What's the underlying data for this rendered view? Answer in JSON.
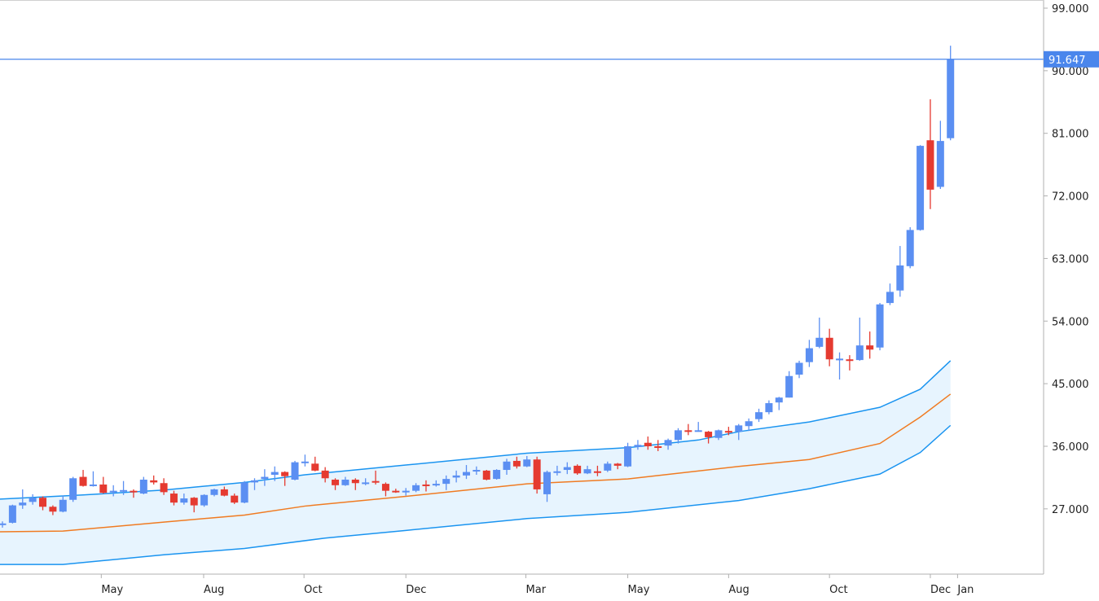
{
  "chart_data": {
    "type": "candlestick",
    "title": "",
    "xlabel": "",
    "ylabel": "",
    "ylim": [
      17600,
      100170
    ],
    "y_ticks": [
      "99.000",
      "90.000",
      "81.000",
      "72.000",
      "63.000",
      "54.000",
      "45.000",
      "36.000",
      "27.000"
    ],
    "y_tick_values": [
      99000,
      90000,
      81000,
      72000,
      63000,
      54000,
      45000,
      36000,
      27000
    ],
    "x_ticks": [
      {
        "label": "May",
        "index": 9.8
      },
      {
        "label": "Aug",
        "index": 19.95
      },
      {
        "label": "Oct",
        "index": 29.9
      },
      {
        "label": "Dec",
        "index": 40
      },
      {
        "label": "Mar",
        "index": 51.9
      },
      {
        "label": "May",
        "index": 62
      },
      {
        "label": "Aug",
        "index": 72
      },
      {
        "label": "Oct",
        "index": 82
      },
      {
        "label": "Dec",
        "index": 92
      },
      {
        "label": "Jan",
        "index": 94.7
      }
    ],
    "current_price": 91647,
    "current_price_label": "91.647",
    "ohlc_units": "thousands",
    "ohlc": [
      [
        24.7,
        25.2,
        24.3,
        24.9
      ],
      [
        25.0,
        27.6,
        24.9,
        27.5
      ],
      [
        27.5,
        29.8,
        27.0,
        27.9
      ],
      [
        28.0,
        29.1,
        27.6,
        28.6
      ],
      [
        28.6,
        28.8,
        26.8,
        27.3
      ],
      [
        27.3,
        27.5,
        26.1,
        26.6
      ],
      [
        26.6,
        28.9,
        26.5,
        28.3
      ],
      [
        28.3,
        31.6,
        28.0,
        31.4
      ],
      [
        31.6,
        32.6,
        30.2,
        30.3
      ],
      [
        30.4,
        32.4,
        30.2,
        30.5
      ],
      [
        30.5,
        31.6,
        29.2,
        29.3
      ],
      [
        29.4,
        30.4,
        28.8,
        29.6
      ],
      [
        29.6,
        31.0,
        29.0,
        29.7
      ],
      [
        29.6,
        29.8,
        28.6,
        29.4
      ],
      [
        29.2,
        31.6,
        29.1,
        31.2
      ],
      [
        31.1,
        31.8,
        30.5,
        30.8
      ],
      [
        30.7,
        31.4,
        29.0,
        29.4
      ],
      [
        29.2,
        29.6,
        27.5,
        27.9
      ],
      [
        27.9,
        29.2,
        27.6,
        28.5
      ],
      [
        28.6,
        28.7,
        26.5,
        27.5
      ],
      [
        27.5,
        29.1,
        27.3,
        29.0
      ],
      [
        29.0,
        29.9,
        28.8,
        29.8
      ],
      [
        29.8,
        30.2,
        28.8,
        28.9
      ],
      [
        28.9,
        29.2,
        27.7,
        27.9
      ],
      [
        27.9,
        31.0,
        27.8,
        30.8
      ],
      [
        30.8,
        31.4,
        29.7,
        31.1
      ],
      [
        31.3,
        32.7,
        30.3,
        31.6
      ],
      [
        31.9,
        33.1,
        31.0,
        32.3
      ],
      [
        32.3,
        32.4,
        30.3,
        31.7
      ],
      [
        31.2,
        33.9,
        31.1,
        33.7
      ],
      [
        33.7,
        34.8,
        33.1,
        33.8
      ],
      [
        33.5,
        34.5,
        32.4,
        32.5
      ],
      [
        32.5,
        33.0,
        30.8,
        31.4
      ],
      [
        31.2,
        31.4,
        29.7,
        30.4
      ],
      [
        30.4,
        31.6,
        30.3,
        31.2
      ],
      [
        31.2,
        31.4,
        29.7,
        30.7
      ],
      [
        30.7,
        31.4,
        30.4,
        30.8
      ],
      [
        31.0,
        32.5,
        30.5,
        30.8
      ],
      [
        30.6,
        30.8,
        28.8,
        29.6
      ],
      [
        29.6,
        29.9,
        29.3,
        29.5
      ],
      [
        29.5,
        30.0,
        28.9,
        29.6
      ],
      [
        29.6,
        30.7,
        29.4,
        30.4
      ],
      [
        30.5,
        31.1,
        29.5,
        30.4
      ],
      [
        30.4,
        31.1,
        30.2,
        30.6
      ],
      [
        30.6,
        31.8,
        29.7,
        31.3
      ],
      [
        31.5,
        32.5,
        30.8,
        31.8
      ],
      [
        31.8,
        33.3,
        31.3,
        32.3
      ],
      [
        32.4,
        33.1,
        31.9,
        32.6
      ],
      [
        32.5,
        32.6,
        31.1,
        31.2
      ],
      [
        31.3,
        32.7,
        31.2,
        32.6
      ],
      [
        32.6,
        34.2,
        31.9,
        33.8
      ],
      [
        33.9,
        34.5,
        32.8,
        33.1
      ],
      [
        33.1,
        34.6,
        33.0,
        34.1
      ],
      [
        34.1,
        34.5,
        29.2,
        29.8
      ],
      [
        29.1,
        32.5,
        28.0,
        32.3
      ],
      [
        32.3,
        33.2,
        31.8,
        32.4
      ],
      [
        32.6,
        33.7,
        32.0,
        33.0
      ],
      [
        33.2,
        33.4,
        31.9,
        32.1
      ],
      [
        32.1,
        33.2,
        32.0,
        32.7
      ],
      [
        32.4,
        33.2,
        31.7,
        32.3
      ],
      [
        32.5,
        33.8,
        32.3,
        33.5
      ],
      [
        33.5,
        33.6,
        32.7,
        33.2
      ],
      [
        33.1,
        36.5,
        33.0,
        36.0
      ],
      [
        35.9,
        36.9,
        35.5,
        36.2
      ],
      [
        36.5,
        37.4,
        35.5,
        36.0
      ],
      [
        36.0,
        36.9,
        35.3,
        35.9
      ],
      [
        36.1,
        37.1,
        35.5,
        36.9
      ],
      [
        36.9,
        38.6,
        36.4,
        38.3
      ],
      [
        38.3,
        39.2,
        37.6,
        38.2
      ],
      [
        38.2,
        39.5,
        38.1,
        38.3
      ],
      [
        38.1,
        38.2,
        36.4,
        37.3
      ],
      [
        37.2,
        38.4,
        36.9,
        38.3
      ],
      [
        38.2,
        38.8,
        37.6,
        38.1
      ],
      [
        38.1,
        39.2,
        36.9,
        39.0
      ],
      [
        38.9,
        40.0,
        38.2,
        39.6
      ],
      [
        39.9,
        41.4,
        39.5,
        40.9
      ],
      [
        40.9,
        42.6,
        40.6,
        42.2
      ],
      [
        42.3,
        43.1,
        41.2,
        43.0
      ],
      [
        43.0,
        46.8,
        43.0,
        46.1
      ],
      [
        46.3,
        48.3,
        45.8,
        48.0
      ],
      [
        48.1,
        51.3,
        47.4,
        50.1
      ],
      [
        50.3,
        54.5,
        50.1,
        51.6
      ],
      [
        51.6,
        52.9,
        47.5,
        48.5
      ],
      [
        48.5,
        49.5,
        45.6,
        48.6
      ],
      [
        48.5,
        49.1,
        46.9,
        48.4
      ],
      [
        48.4,
        54.5,
        48.3,
        50.5
      ],
      [
        50.5,
        52.5,
        48.6,
        49.9
      ],
      [
        50.2,
        56.6,
        49.8,
        56.4
      ],
      [
        56.6,
        59.4,
        56.3,
        58.2
      ],
      [
        58.4,
        64.8,
        57.5,
        62.0
      ],
      [
        61.9,
        67.5,
        61.6,
        67.1
      ],
      [
        67.1,
        79.3,
        67.0,
        79.2
      ],
      [
        80.0,
        85.9,
        70.1,
        72.9
      ],
      [
        73.3,
        82.8,
        73.0,
        79.9
      ],
      [
        80.3,
        93.6,
        80.0,
        91.647
      ]
    ],
    "bands": {
      "upper": [
        [
          0,
          28.4
        ],
        [
          8,
          29.0
        ],
        [
          16,
          29.7
        ],
        [
          24,
          30.8
        ],
        [
          30,
          31.9
        ],
        [
          40,
          33.3
        ],
        [
          52,
          35.0
        ],
        [
          62,
          35.8
        ],
        [
          69,
          36.9
        ],
        [
          73,
          38.1
        ],
        [
          80,
          39.5
        ],
        [
          87,
          41.6
        ],
        [
          91,
          44.2
        ],
        [
          94,
          48.3
        ]
      ],
      "middle": [
        [
          0,
          23.7
        ],
        [
          6,
          23.8
        ],
        [
          16,
          25.1
        ],
        [
          24,
          26.1
        ],
        [
          30,
          27.4
        ],
        [
          40,
          28.8
        ],
        [
          52,
          30.6
        ],
        [
          62,
          31.3
        ],
        [
          73,
          33.1
        ],
        [
          80,
          34.1
        ],
        [
          87,
          36.4
        ],
        [
          91,
          40.2
        ],
        [
          94,
          43.5
        ]
      ],
      "lower": [
        [
          0,
          19.0
        ],
        [
          6,
          19.0
        ],
        [
          16,
          20.4
        ],
        [
          24,
          21.3
        ],
        [
          32,
          22.8
        ],
        [
          40,
          23.9
        ],
        [
          52,
          25.6
        ],
        [
          62,
          26.5
        ],
        [
          73,
          28.2
        ],
        [
          80,
          29.9
        ],
        [
          87,
          32.0
        ],
        [
          91,
          35.1
        ],
        [
          94,
          39.0
        ]
      ]
    },
    "colors": {
      "up": "#5b8ff2",
      "down": "#e53a30",
      "band_line": "#1a94f0",
      "middle_line": "#f07b22",
      "band_fill": "#e7f4fe",
      "price_line": "#4a86ec",
      "axis": "#b0b0b0"
    }
  }
}
